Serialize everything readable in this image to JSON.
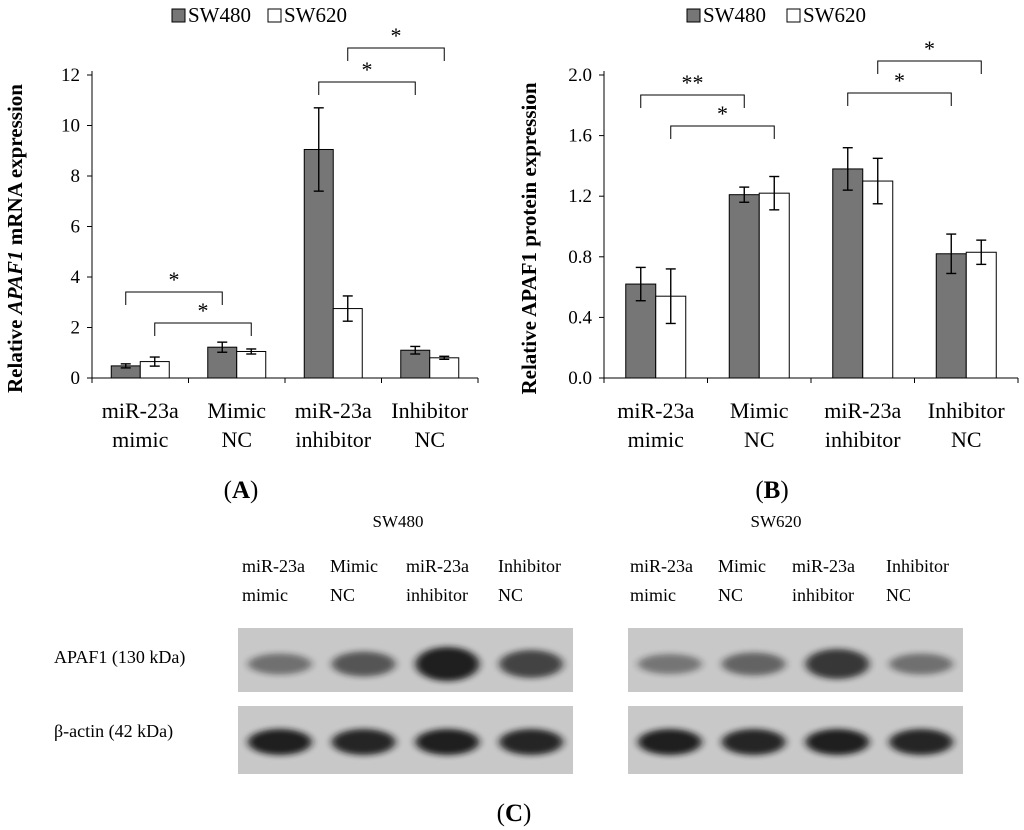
{
  "chart_data": [
    {
      "type": "bar",
      "panel_label": "(A)",
      "ylabel_prefix": "Relative ",
      "ylabel_gene": "APAF1",
      "ylabel_suffix": " mRNA expression",
      "categories": [
        [
          "miR-23a",
          "mimic"
        ],
        [
          "Mimic",
          "NC"
        ],
        [
          "miR-23a",
          "inhibitor"
        ],
        [
          "Inhibitor",
          "NC"
        ]
      ],
      "series": [
        {
          "name": "SW480",
          "values": [
            0.48,
            1.22,
            9.05,
            1.1
          ],
          "errors": [
            0.08,
            0.2,
            1.65,
            0.15
          ]
        },
        {
          "name": "SW620",
          "values": [
            0.65,
            1.05,
            2.75,
            0.8
          ],
          "errors": [
            0.18,
            0.1,
            0.5,
            0.06
          ]
        }
      ],
      "ylim": [
        0,
        12
      ],
      "yticks": [
        0,
        2,
        4,
        6,
        8,
        10,
        12
      ],
      "ytick_labels": [
        "0",
        "2",
        "4",
        "6",
        "8",
        "10",
        "12"
      ],
      "grid": false,
      "legend_position": "top-center",
      "significance": [
        {
          "from": [
            0,
            0
          ],
          "to": [
            1,
            0
          ],
          "label": "*"
        },
        {
          "from": [
            0,
            1
          ],
          "to": [
            1,
            1
          ],
          "label": "*"
        },
        {
          "from": [
            2,
            0
          ],
          "to": [
            3,
            0
          ],
          "label": "*"
        },
        {
          "from": [
            2,
            1
          ],
          "to": [
            3,
            1
          ],
          "label": "*"
        }
      ]
    },
    {
      "type": "bar",
      "panel_label": "(B)",
      "ylabel": "Relative APAF1 protein expression",
      "categories": [
        [
          "miR-23a",
          "mimic"
        ],
        [
          "Mimic",
          "NC"
        ],
        [
          "miR-23a",
          "inhibitor"
        ],
        [
          "Inhibitor",
          "NC"
        ]
      ],
      "series": [
        {
          "name": "SW480",
          "values": [
            0.62,
            1.21,
            1.38,
            0.82
          ],
          "errors": [
            0.11,
            0.05,
            0.14,
            0.13
          ]
        },
        {
          "name": "SW620",
          "values": [
            0.54,
            1.22,
            1.3,
            0.83
          ],
          "errors": [
            0.18,
            0.11,
            0.15,
            0.08
          ]
        }
      ],
      "ylim": [
        0,
        2
      ],
      "yticks": [
        0,
        0.4,
        0.8,
        1.2,
        1.6,
        2.0
      ],
      "ytick_labels": [
        "0.0",
        "0.4",
        "0.8",
        "1.2",
        "1.6",
        "2.0"
      ],
      "grid": false,
      "legend_position": "top-center",
      "significance": [
        {
          "from": [
            0,
            0
          ],
          "to": [
            1,
            0
          ],
          "label": "**"
        },
        {
          "from": [
            0,
            1
          ],
          "to": [
            1,
            1
          ],
          "label": "*"
        },
        {
          "from": [
            2,
            0
          ],
          "to": [
            3,
            0
          ],
          "label": "*"
        },
        {
          "from": [
            2,
            1
          ],
          "to": [
            3,
            1
          ],
          "label": "*"
        }
      ]
    }
  ],
  "blots": {
    "panel_label": "(C)",
    "row_labels": [
      "APAF1 (130 kDa)",
      "β-actin (42 kDa)"
    ],
    "lane_labels": [
      [
        "miR-23a",
        "mimic"
      ],
      [
        "Mimic",
        "NC"
      ],
      [
        "miR-23a",
        "inhibitor"
      ],
      [
        "Inhibitor",
        "NC"
      ]
    ],
    "groups": [
      {
        "title": "SW480",
        "apaf1_intensity": [
          0.35,
          0.55,
          1.0,
          0.7
        ],
        "actin_intensity": [
          1.0,
          0.95,
          1.0,
          0.95
        ]
      },
      {
        "title": "SW620",
        "apaf1_intensity": [
          0.3,
          0.45,
          0.8,
          0.35
        ],
        "actin_intensity": [
          1.0,
          0.95,
          1.0,
          0.95
        ]
      }
    ]
  },
  "colors": {
    "sw480": "#767676",
    "sw620": "#ffffff",
    "stroke": "#000000",
    "blot_bg": "#c8c8c8",
    "band": "#141414"
  }
}
